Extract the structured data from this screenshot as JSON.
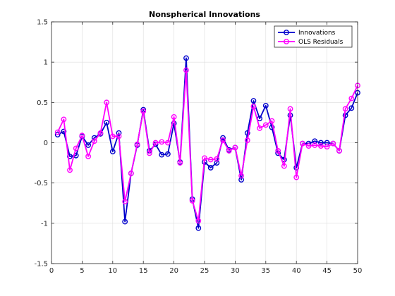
{
  "chart_data": {
    "type": "line",
    "title": "Nonspherical Innovations",
    "xlabel": "",
    "ylabel": "",
    "xlim": [
      0,
      50
    ],
    "ylim": [
      -1.5,
      1.5
    ],
    "xticks": [
      0,
      5,
      10,
      15,
      20,
      25,
      30,
      35,
      40,
      45,
      50
    ],
    "yticks": [
      -1.5,
      -1,
      -0.5,
      0,
      0.5,
      1,
      1.5
    ],
    "xtick_labels": [
      "0",
      "5",
      "10",
      "15",
      "20",
      "25",
      "30",
      "35",
      "40",
      "45",
      "50"
    ],
    "ytick_labels": [
      "-1.5",
      "-1",
      "-0.5",
      "0",
      "0.5",
      "1",
      "1.5"
    ],
    "grid": true,
    "legend_position": "top-right",
    "x": [
      1,
      2,
      3,
      4,
      5,
      6,
      7,
      8,
      9,
      10,
      11,
      12,
      13,
      14,
      15,
      16,
      17,
      18,
      19,
      20,
      21,
      22,
      23,
      24,
      25,
      26,
      27,
      28,
      29,
      30,
      31,
      32,
      33,
      34,
      35,
      36,
      37,
      38,
      39,
      40,
      41,
      42,
      43,
      44,
      45,
      46,
      47,
      48,
      49,
      50
    ],
    "series": [
      {
        "name": "Innovations",
        "color": "#0000cc",
        "values": [
          0.1,
          0.14,
          -0.17,
          -0.16,
          0.08,
          -0.03,
          0.06,
          0.11,
          0.25,
          -0.11,
          0.12,
          -0.98,
          -0.38,
          -0.03,
          0.41,
          -0.1,
          -0.02,
          -0.15,
          -0.14,
          0.24,
          -0.24,
          1.05,
          -0.7,
          -1.06,
          -0.24,
          -0.31,
          -0.25,
          0.06,
          -0.09,
          -0.06,
          -0.46,
          0.12,
          0.52,
          0.3,
          0.46,
          0.19,
          -0.13,
          -0.21,
          0.34,
          -0.31,
          -0.01,
          -0.01,
          0.02,
          0.0,
          0.0,
          -0.01,
          -0.1,
          0.34,
          0.43,
          0.62
        ]
      },
      {
        "name": "OLS Residuals",
        "color": "#ff00ff",
        "values": [
          0.13,
          0.29,
          -0.34,
          -0.07,
          0.09,
          -0.17,
          0.02,
          0.12,
          0.5,
          0.08,
          0.08,
          -0.73,
          -0.38,
          -0.02,
          0.39,
          -0.13,
          0.0,
          0.01,
          0.0,
          0.32,
          -0.25,
          0.9,
          -0.72,
          -0.97,
          -0.19,
          -0.21,
          -0.2,
          0.03,
          -0.1,
          -0.06,
          -0.41,
          0.03,
          0.45,
          0.18,
          0.22,
          0.27,
          -0.1,
          -0.29,
          0.42,
          -0.43,
          -0.01,
          -0.04,
          -0.03,
          -0.04,
          -0.05,
          -0.01,
          -0.1,
          0.42,
          0.55,
          0.71
        ]
      }
    ]
  }
}
